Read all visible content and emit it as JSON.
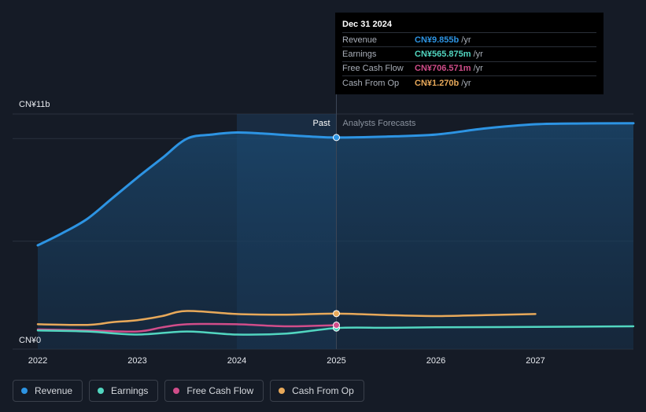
{
  "chart_data": {
    "type": "area",
    "title": "",
    "y_top_label": "CN¥11b",
    "y_bottom_label": "CN¥0",
    "ylim": [
      0,
      11
    ],
    "xlim": [
      2021.8,
      2028.0
    ],
    "x_ticks": [
      2022,
      2023,
      2024,
      2025,
      2026,
      2027
    ],
    "x_tick_labels": [
      "2022",
      "2023",
      "2024",
      "2025",
      "2026",
      "2027"
    ],
    "past_label": "Past",
    "forecast_label": "Analysts Forecasts",
    "split_x": 2025.0,
    "highlight_start_x": 2024.0,
    "series": [
      {
        "name": "Revenue",
        "color": "#2d94e3",
        "fill": true,
        "points": [
          [
            2022.0,
            4.6
          ],
          [
            2022.25,
            5.2
          ],
          [
            2022.5,
            5.9
          ],
          [
            2022.75,
            6.9
          ],
          [
            2023.0,
            7.9
          ],
          [
            2023.25,
            8.85
          ],
          [
            2023.5,
            9.8
          ],
          [
            2023.75,
            10.0
          ],
          [
            2024.0,
            10.1
          ],
          [
            2024.25,
            10.05
          ],
          [
            2024.5,
            9.97
          ],
          [
            2024.75,
            9.9
          ],
          [
            2025.0,
            9.855
          ],
          [
            2025.5,
            9.9
          ],
          [
            2026.0,
            10.0
          ],
          [
            2026.5,
            10.3
          ],
          [
            2027.0,
            10.5
          ],
          [
            2027.5,
            10.54
          ],
          [
            2028.0,
            10.55
          ]
        ]
      },
      {
        "name": "Earnings",
        "color": "#52d6c0",
        "fill": false,
        "points": [
          [
            2022.0,
            0.45
          ],
          [
            2022.5,
            0.4
          ],
          [
            2023.0,
            0.25
          ],
          [
            2023.5,
            0.4
          ],
          [
            2024.0,
            0.25
          ],
          [
            2024.5,
            0.3
          ],
          [
            2025.0,
            0.566
          ],
          [
            2025.5,
            0.58
          ],
          [
            2026.0,
            0.6
          ],
          [
            2027.0,
            0.62
          ],
          [
            2028.0,
            0.65
          ]
        ]
      },
      {
        "name": "Free Cash Flow",
        "color": "#d04d8a",
        "fill": false,
        "points": [
          [
            2022.0,
            0.5
          ],
          [
            2022.5,
            0.45
          ],
          [
            2023.0,
            0.4
          ],
          [
            2023.25,
            0.6
          ],
          [
            2023.5,
            0.75
          ],
          [
            2024.0,
            0.75
          ],
          [
            2024.5,
            0.65
          ],
          [
            2025.0,
            0.707
          ]
        ]
      },
      {
        "name": "Cash From Op",
        "color": "#e8a95a",
        "fill": false,
        "points": [
          [
            2022.0,
            0.75
          ],
          [
            2022.5,
            0.72
          ],
          [
            2022.75,
            0.85
          ],
          [
            2023.0,
            0.95
          ],
          [
            2023.25,
            1.15
          ],
          [
            2023.5,
            1.4
          ],
          [
            2024.0,
            1.25
          ],
          [
            2024.5,
            1.22
          ],
          [
            2025.0,
            1.27
          ],
          [
            2025.5,
            1.2
          ],
          [
            2026.0,
            1.15
          ],
          [
            2026.5,
            1.2
          ],
          [
            2027.0,
            1.25
          ]
        ]
      }
    ],
    "tooltip": {
      "date": "Dec 31 2024",
      "rows": [
        {
          "label": "Revenue",
          "value": "CN¥9.855b",
          "unit": "/yr",
          "color": "#2d94e3"
        },
        {
          "label": "Earnings",
          "value": "CN¥565.875m",
          "unit": "/yr",
          "color": "#52d6c0"
        },
        {
          "label": "Free Cash Flow",
          "value": "CN¥706.571m",
          "unit": "/yr",
          "color": "#d04d8a"
        },
        {
          "label": "Cash From Op",
          "value": "CN¥1.270b",
          "unit": "/yr",
          "color": "#e8a95a"
        }
      ]
    }
  },
  "legend": [
    {
      "label": "Revenue",
      "color": "#2d94e3"
    },
    {
      "label": "Earnings",
      "color": "#52d6c0"
    },
    {
      "label": "Free Cash Flow",
      "color": "#d04d8a"
    },
    {
      "label": "Cash From Op",
      "color": "#e8a95a"
    }
  ]
}
